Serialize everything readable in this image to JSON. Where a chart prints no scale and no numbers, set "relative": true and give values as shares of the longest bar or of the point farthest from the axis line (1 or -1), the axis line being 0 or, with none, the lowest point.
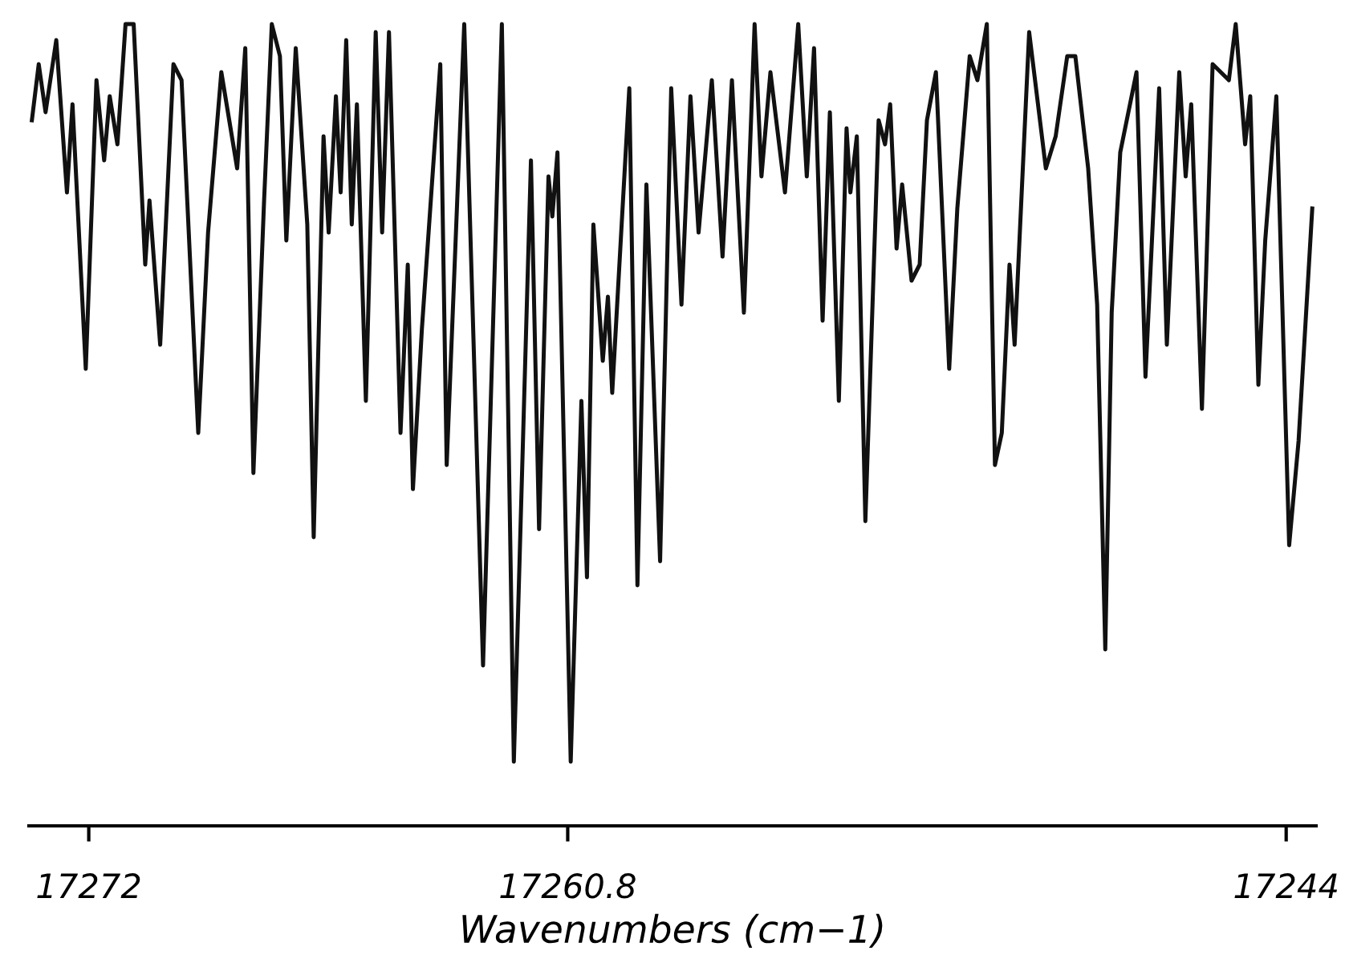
{
  "chart_data": {
    "type": "line",
    "relative": true,
    "xlabel": "Wavenumbers (cm−1)",
    "xlim": [
      17273.4,
      17243.3
    ],
    "xticks": [
      17272,
      17260.8,
      17244
    ],
    "tick_labels": "x",
    "grid": false,
    "legend": false,
    "marker": "none",
    "line_style": "solid",
    "series": [
      {
        "color": "#111111",
        "x": [
          17273.33,
          17273.17,
          17273.01,
          17272.76,
          17272.51,
          17272.38,
          17272.07,
          17271.82,
          17271.64,
          17271.51,
          17271.33,
          17271.14,
          17270.95,
          17270.68,
          17270.58,
          17270.33,
          17270.02,
          17269.83,
          17269.44,
          17269.21,
          17268.9,
          17268.53,
          17268.34,
          17268.15,
          17267.9,
          17267.72,
          17267.53,
          17267.38,
          17267.16,
          17266.89,
          17266.74,
          17266.51,
          17266.39,
          17266.22,
          17266.11,
          17265.98,
          17265.85,
          17265.73,
          17265.52,
          17265.29,
          17265.14,
          17264.98,
          17264.71,
          17264.54,
          17264.42,
          17264.21,
          17263.78,
          17263.63,
          17263.22,
          17262.78,
          17262.34,
          17262.06,
          17261.66,
          17261.47,
          17261.25,
          17261.16,
          17261.04,
          17260.73,
          17260.48,
          17260.35,
          17260.2,
          17259.98,
          17259.86,
          17259.76,
          17259.36,
          17259.17,
          17258.96,
          17258.64,
          17258.38,
          17258.14,
          17257.93,
          17257.74,
          17257.43,
          17257.18,
          17256.96,
          17256.68,
          17256.43,
          17256.27,
          17256.06,
          17255.72,
          17255.41,
          17255.21,
          17255.04,
          17254.84,
          17254.67,
          17254.46,
          17254.28,
          17254.19,
          17254.04,
          17253.84,
          17253.53,
          17253.38,
          17253.26,
          17253.11,
          17252.98,
          17252.76,
          17252.57,
          17252.4,
          17252.19,
          17251.88,
          17251.69,
          17251.4,
          17251.22,
          17251.0,
          17250.81,
          17250.65,
          17250.47,
          17250.35,
          17250.01,
          17249.62,
          17249.39,
          17249.12,
          17248.93,
          17248.63,
          17248.42,
          17248.23,
          17248.08,
          17247.88,
          17247.5,
          17247.29,
          17246.97,
          17246.79,
          17246.5,
          17246.35,
          17246.22,
          17245.97,
          17245.72,
          17245.34,
          17245.18,
          17244.96,
          17244.84,
          17244.65,
          17244.49,
          17244.23,
          17243.93,
          17243.71,
          17243.39
        ],
        "values": [
          0.88,
          0.95,
          0.89,
          0.98,
          0.79,
          0.9,
          0.57,
          0.93,
          0.83,
          0.91,
          0.85,
          1.0,
          1.0,
          0.7,
          0.78,
          0.6,
          0.95,
          0.93,
          0.49,
          0.74,
          0.94,
          0.82,
          0.97,
          0.44,
          0.78,
          1.0,
          0.96,
          0.73,
          0.97,
          0.75,
          0.36,
          0.86,
          0.74,
          0.91,
          0.79,
          0.98,
          0.75,
          0.9,
          0.53,
          0.99,
          0.74,
          0.99,
          0.49,
          0.7,
          0.42,
          0.62,
          0.95,
          0.45,
          1.0,
          0.2,
          1.0,
          0.08,
          0.83,
          0.37,
          0.81,
          0.76,
          0.84,
          0.08,
          0.53,
          0.31,
          0.75,
          0.58,
          0.66,
          0.54,
          0.92,
          0.3,
          0.8,
          0.33,
          0.92,
          0.65,
          0.91,
          0.74,
          0.93,
          0.71,
          0.93,
          0.64,
          1.0,
          0.81,
          0.94,
          0.79,
          1.0,
          0.81,
          0.97,
          0.63,
          0.89,
          0.53,
          0.87,
          0.79,
          0.86,
          0.38,
          0.88,
          0.85,
          0.9,
          0.72,
          0.8,
          0.68,
          0.7,
          0.88,
          0.94,
          0.57,
          0.77,
          0.96,
          0.93,
          1.0,
          0.45,
          0.49,
          0.7,
          0.6,
          0.99,
          0.82,
          0.86,
          0.96,
          0.96,
          0.82,
          0.65,
          0.22,
          0.64,
          0.84,
          0.94,
          0.56,
          0.92,
          0.6,
          0.94,
          0.81,
          0.9,
          0.52,
          0.95,
          0.93,
          1.0,
          0.85,
          0.91,
          0.55,
          0.73,
          0.91,
          0.35,
          0.48,
          0.77
        ]
      }
    ]
  }
}
